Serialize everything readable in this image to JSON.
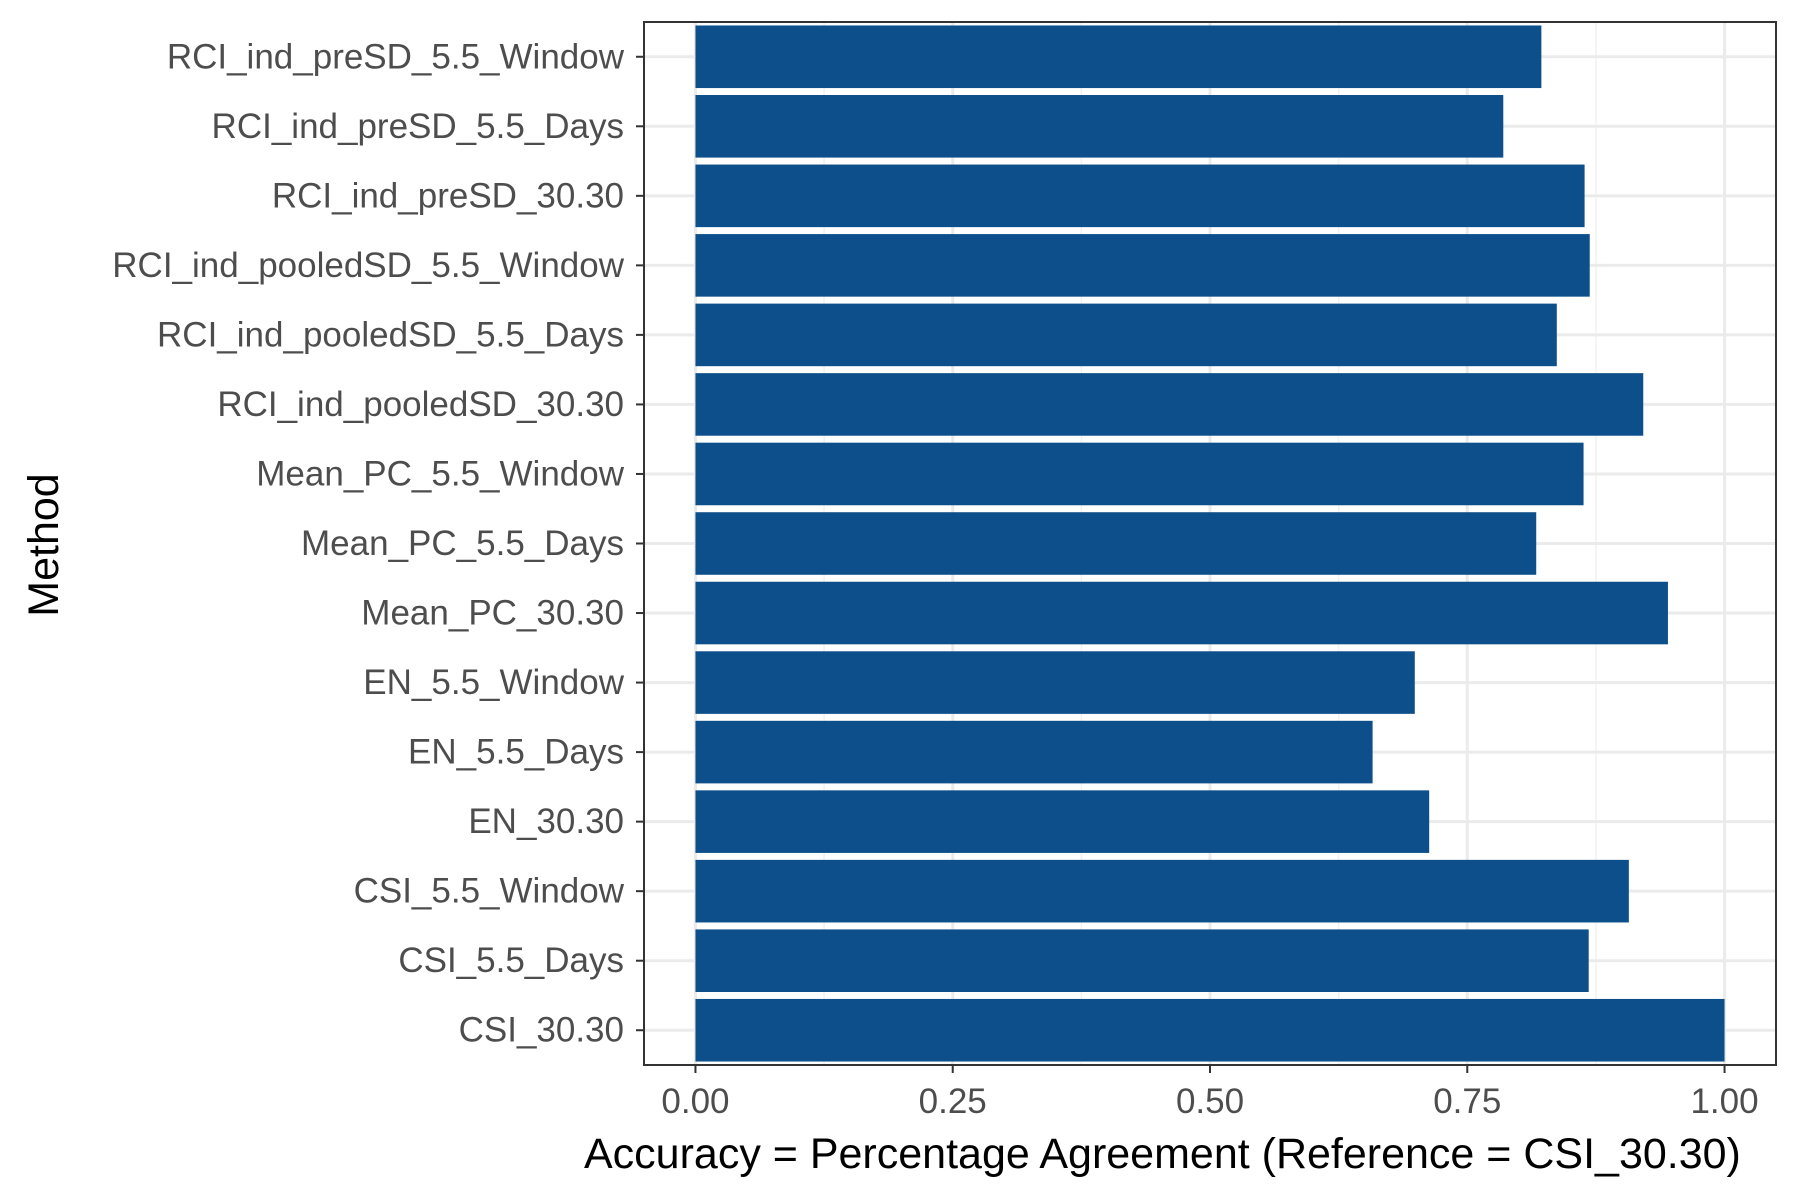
{
  "chart_data": {
    "type": "bar",
    "orientation": "horizontal",
    "categories": [
      "RCI_ind_preSD_5.5_Window",
      "RCI_ind_preSD_5.5_Days",
      "RCI_ind_preSD_30.30",
      "RCI_ind_pooledSD_5.5_Window",
      "RCI_ind_pooledSD_5.5_Days",
      "RCI_ind_pooledSD_30.30",
      "Mean_PC_5.5_Window",
      "Mean_PC_5.5_Days",
      "Mean_PC_30.30",
      "EN_5.5_Window",
      "EN_5.5_Days",
      "EN_30.30",
      "CSI_5.5_Window",
      "CSI_5.5_Days",
      "CSI_30.30"
    ],
    "values": [
      0.822,
      0.785,
      0.864,
      0.869,
      0.837,
      0.921,
      0.863,
      0.817,
      0.945,
      0.699,
      0.658,
      0.713,
      0.907,
      0.868,
      1.0
    ],
    "xlabel": "Accuracy = Percentage Agreement (Reference = CSI_30.30)",
    "ylabel": "Method",
    "xlim": [
      -0.05,
      1.05
    ],
    "x_ticks": [
      0.0,
      0.25,
      0.5,
      0.75,
      1.0
    ],
    "x_tick_labels": [
      "0.00",
      "0.25",
      "0.50",
      "0.75",
      "1.00"
    ],
    "grid": true,
    "bar_color": "#0d4f8b"
  }
}
